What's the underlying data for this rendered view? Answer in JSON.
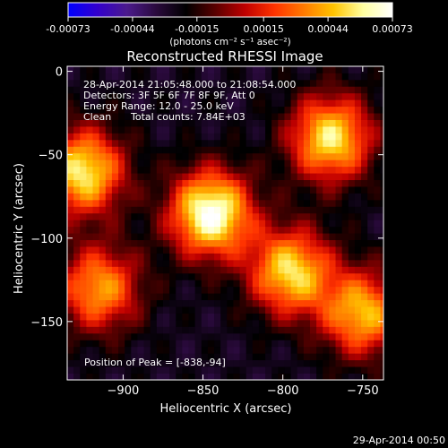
{
  "colorbar": {
    "ticks": [
      "-0.00073",
      "-0.00044",
      "-0.00015",
      "0.00015",
      "0.00044",
      "0.00073"
    ],
    "tick_values": [
      -0.00073,
      -0.00044,
      -0.00015,
      0.00015,
      0.00044,
      0.00073
    ],
    "range": [
      -0.00073,
      0.00073
    ],
    "unit_label": "(photons cm⁻² s⁻¹ asec⁻²)",
    "colors": [
      "#0000ff",
      "#3300cc",
      "#4b1a8c",
      "#2a0a3c",
      "#000000",
      "#5a0000",
      "#c00000",
      "#ff3300",
      "#ff7a00",
      "#ffc400",
      "#ffffa0",
      "#ffffff"
    ]
  },
  "chart_data": {
    "type": "heatmap",
    "title": "Reconstructed RHESSI Image",
    "xlabel": "Heliocentric X (arcsec)",
    "ylabel": "Heliocentric Y (arcsec)",
    "xlim": [
      -935,
      -737
    ],
    "ylim": [
      -185,
      3
    ],
    "x_ticks": [
      -900,
      -850,
      -800,
      -750
    ],
    "y_ticks": [
      0,
      -50,
      -100,
      -150
    ],
    "x_tick_labels": [
      "−900",
      "−850",
      "−800",
      "−750"
    ],
    "y_tick_labels": [
      "0",
      "−50",
      "−100",
      "−150"
    ],
    "sources": [
      {
        "x": -845,
        "y": -85,
        "peak": 0.00073
      },
      {
        "x": -925,
        "y": -60,
        "peak": 0.00058
      },
      {
        "x": -770,
        "y": -40,
        "peak": 0.00056
      },
      {
        "x": -795,
        "y": -120,
        "peak": 0.00054
      },
      {
        "x": -750,
        "y": -145,
        "peak": 0.00046
      },
      {
        "x": -915,
        "y": -130,
        "peak": 0.0004
      }
    ],
    "peak_position": [
      -838,
      -94
    ],
    "annotations": {
      "time_range": "28-Apr-2014 21:05:48.000 to 21:08:54.000",
      "detectors": "Detectors: 3F 5F 6F 7F 8F 9F, Att 0",
      "energy": "Energy Range: 12.0 - 25.0 keV",
      "method": "Clean",
      "counts": "Total counts: 7.84E+03",
      "peak": "Position of Peak = [-838,-94]"
    }
  },
  "footer": {
    "timestamp": "29-Apr-2014 00:50"
  }
}
